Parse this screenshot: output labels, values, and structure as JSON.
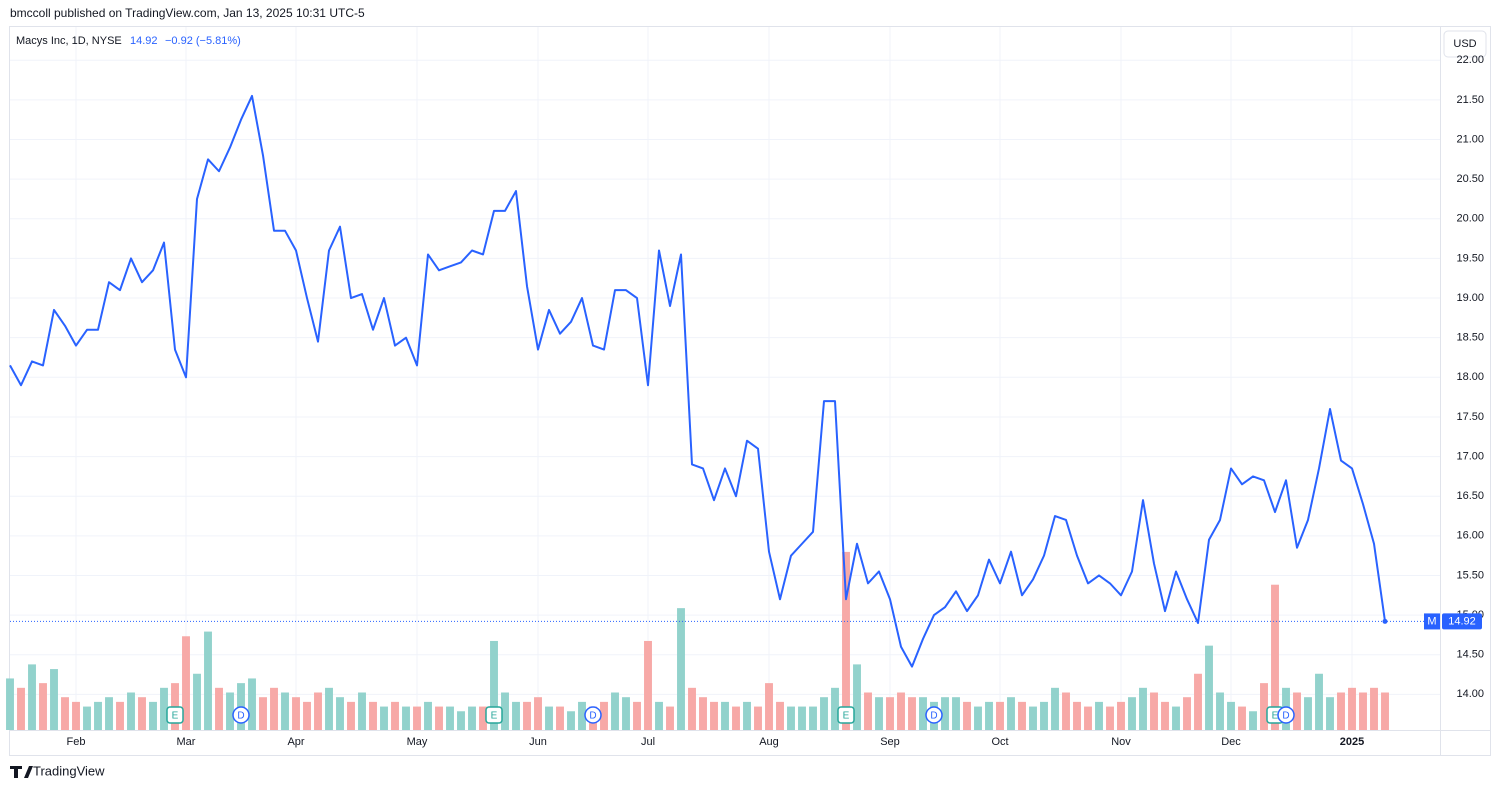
{
  "header": "bmccoll published on TradingView.com, Jan 13, 2025 10:31 UTC-5",
  "footer": "TradingView",
  "chart_data": {
    "type": "line",
    "legend": {
      "symbol": "Macys Inc, 1D, NYSE",
      "change": "−0.92 (−5.81%)"
    },
    "currency": "USD",
    "price_tag": "M",
    "color": "#2962ff",
    "grid": true,
    "categories": [
      null,
      null,
      null,
      null,
      null,
      null,
      "Feb",
      null,
      null,
      null,
      null,
      null,
      null,
      null,
      null,
      null,
      "Mar",
      null,
      null,
      null,
      null,
      null,
      null,
      null,
      null,
      null,
      "Apr",
      null,
      null,
      null,
      null,
      null,
      null,
      null,
      null,
      null,
      null,
      "May",
      null,
      null,
      null,
      null,
      null,
      null,
      null,
      null,
      null,
      null,
      "Jun",
      null,
      null,
      null,
      null,
      null,
      null,
      null,
      null,
      null,
      "Jul",
      null,
      null,
      null,
      null,
      null,
      null,
      null,
      null,
      null,
      null,
      "Aug",
      null,
      null,
      null,
      null,
      null,
      null,
      null,
      null,
      null,
      null,
      "Sep",
      null,
      null,
      null,
      null,
      null,
      null,
      null,
      null,
      null,
      "Oct",
      null,
      null,
      null,
      null,
      null,
      null,
      null,
      null,
      null,
      null,
      "Nov",
      null,
      null,
      null,
      null,
      null,
      null,
      null,
      null,
      null,
      "Dec",
      null,
      null,
      null,
      null,
      null,
      null,
      null,
      null,
      null,
      null,
      "2025",
      null,
      null,
      null
    ],
    "values": [
      18.15,
      17.9,
      18.2,
      18.15,
      18.85,
      18.65,
      18.4,
      18.6,
      18.6,
      19.2,
      19.1,
      19.5,
      19.2,
      19.35,
      19.7,
      18.35,
      18.0,
      20.25,
      20.75,
      20.6,
      20.9,
      21.25,
      21.55,
      20.8,
      19.85,
      19.85,
      19.6,
      19.0,
      18.45,
      19.6,
      19.9,
      19.0,
      19.05,
      18.6,
      19.0,
      18.4,
      18.5,
      18.15,
      19.55,
      19.35,
      19.4,
      19.45,
      19.6,
      19.55,
      20.1,
      20.1,
      20.35,
      19.15,
      18.35,
      18.85,
      18.55,
      18.7,
      19.0,
      18.4,
      18.35,
      19.1,
      19.1,
      19.0,
      17.9,
      19.6,
      18.9,
      19.55,
      16.9,
      16.85,
      16.45,
      16.85,
      16.5,
      17.2,
      17.1,
      15.8,
      15.2,
      15.75,
      15.9,
      16.05,
      17.7,
      17.7,
      15.2,
      15.9,
      15.4,
      15.55,
      15.2,
      14.6,
      14.35,
      14.7,
      15.0,
      15.1,
      15.3,
      15.05,
      15.25,
      15.7,
      15.4,
      15.8,
      15.25,
      15.45,
      15.75,
      16.25,
      16.2,
      15.75,
      15.4,
      15.5,
      15.4,
      15.25,
      15.55,
      16.45,
      15.65,
      15.05,
      15.55,
      15.2,
      14.9,
      15.95,
      16.2,
      16.85,
      16.65,
      16.75,
      16.7,
      16.3,
      16.7,
      15.85,
      16.2,
      16.85,
      17.6,
      16.95,
      16.85,
      16.4,
      15.9,
      14.92
    ],
    "volume": {
      "up_color": "#92d2cc",
      "down_color": "#f7a9a7",
      "values": [
        11,
        9,
        14,
        10,
        13,
        7,
        6,
        5,
        6,
        7,
        6,
        8,
        7,
        6,
        9,
        10,
        20,
        12,
        21,
        9,
        8,
        10,
        11,
        7,
        9,
        8,
        7,
        6,
        8,
        9,
        7,
        6,
        8,
        6,
        5,
        6,
        5,
        5,
        6,
        5,
        5,
        4,
        5,
        5,
        19,
        8,
        6,
        6,
        7,
        5,
        5,
        4,
        6,
        5,
        6,
        8,
        7,
        6,
        19,
        6,
        5,
        26,
        9,
        7,
        6,
        6,
        5,
        6,
        5,
        10,
        6,
        5,
        5,
        5,
        7,
        9,
        38,
        14,
        8,
        7,
        7,
        8,
        7,
        7,
        6,
        7,
        7,
        6,
        5,
        6,
        6,
        7,
        6,
        5,
        6,
        9,
        8,
        6,
        5,
        6,
        5,
        6,
        7,
        9,
        8,
        6,
        5,
        7,
        12,
        18,
        8,
        6,
        5,
        4,
        10,
        31,
        9,
        8,
        7,
        12,
        7,
        8,
        9,
        8,
        9,
        8
      ]
    },
    "y2lim": [
      0,
      150
    ],
    "events": [
      {
        "label": "E",
        "point": 15
      },
      {
        "label": "D",
        "point": 21
      },
      {
        "label": "E",
        "point": 44
      },
      {
        "label": "D",
        "point": 53
      },
      {
        "label": "E",
        "point": 76
      },
      {
        "label": "D",
        "point": 84
      },
      {
        "label": "E",
        "point": 115
      },
      {
        "label": "D",
        "point": 116
      }
    ],
    "ylim": [
      13.55,
      22.42
    ],
    "yticks": [
      {
        "value": 14,
        "label": "14.00"
      },
      {
        "value": 14.5,
        "label": "14.50"
      },
      {
        "value": 15,
        "label": "15.00"
      },
      {
        "value": 15.5,
        "label": "15.50"
      },
      {
        "value": 16,
        "label": "16.00"
      },
      {
        "value": 16.5,
        "label": "16.50"
      },
      {
        "value": 17,
        "label": "17.00"
      },
      {
        "value": 17.5,
        "label": "17.50"
      },
      {
        "value": 18,
        "label": "18.00"
      },
      {
        "value": 18.5,
        "label": "18.50"
      },
      {
        "value": 19,
        "label": "19.00"
      },
      {
        "value": 19.5,
        "label": "19.50"
      },
      {
        "value": 20,
        "label": "20.00"
      },
      {
        "value": 20.5,
        "label": "20.50"
      },
      {
        "value": 21,
        "label": "21.00"
      },
      {
        "value": 21.5,
        "label": "21.50"
      },
      {
        "value": 22,
        "label": "22.00"
      }
    ]
  }
}
